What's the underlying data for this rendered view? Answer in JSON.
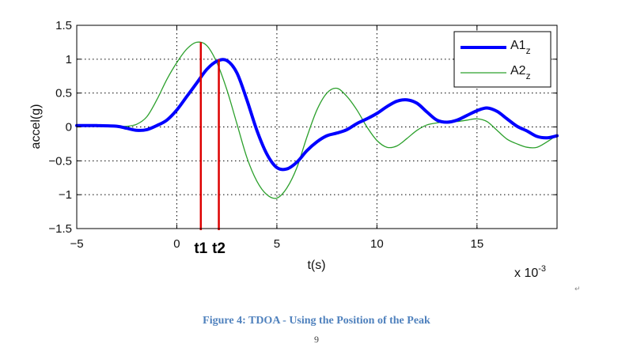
{
  "chart_data": {
    "type": "line",
    "xlabel": "t(s)",
    "ylabel": "accel(g)",
    "x_multiplier": "x 10",
    "x_multiplier_exp": "-3",
    "xlim": [
      -5,
      19
    ],
    "ylim": [
      -1.5,
      1.5
    ],
    "xticks": [
      -5,
      0,
      5,
      10,
      15
    ],
    "yticks": [
      -1.5,
      -1,
      -0.5,
      0,
      0.5,
      1,
      1.5
    ],
    "xtick_labels": [
      "−5",
      "0",
      "5",
      "10",
      "15"
    ],
    "ytick_labels": [
      "−1.5",
      "−1",
      "−0.5",
      "0",
      "0.5",
      "1",
      "1.5"
    ],
    "grid": true,
    "legend_position": "top-right",
    "series": [
      {
        "name": "A1",
        "subscript": "z",
        "color": "#0000ff",
        "x": [
          -5,
          -4,
          -3,
          -2.5,
          -2,
          -1.5,
          -1,
          -0.5,
          0,
          0.5,
          1,
          1.5,
          2,
          2.5,
          3,
          3.5,
          4,
          4.5,
          5,
          5.5,
          6,
          6.5,
          7,
          7.5,
          8,
          8.5,
          9,
          9.5,
          10,
          10.5,
          11,
          11.5,
          12,
          12.5,
          13,
          13.5,
          14,
          14.5,
          15,
          15.5,
          16,
          16.5,
          17,
          17.5,
          18,
          18.5,
          19
        ],
        "y": [
          0.02,
          0.02,
          0.01,
          -0.02,
          -0.05,
          -0.04,
          0.02,
          0.1,
          0.25,
          0.45,
          0.65,
          0.85,
          0.97,
          0.98,
          0.8,
          0.4,
          -0.05,
          -0.4,
          -0.6,
          -0.62,
          -0.52,
          -0.35,
          -0.22,
          -0.13,
          -0.09,
          -0.04,
          0.05,
          0.12,
          0.2,
          0.3,
          0.38,
          0.4,
          0.35,
          0.22,
          0.1,
          0.07,
          0.1,
          0.17,
          0.24,
          0.28,
          0.23,
          0.12,
          0.01,
          -0.06,
          -0.14,
          -0.16,
          -0.13
        ]
      },
      {
        "name": "A2",
        "subscript": "z",
        "color": "#2ca02c",
        "x": [
          -5,
          -4,
          -3,
          -2.5,
          -2,
          -1.5,
          -1,
          -0.5,
          0,
          0.5,
          1,
          1.5,
          2,
          2.5,
          3,
          3.5,
          4,
          4.5,
          5,
          5.5,
          6,
          6.5,
          7,
          7.5,
          8,
          8.5,
          9,
          9.5,
          10,
          10.5,
          11,
          11.5,
          12,
          12.5,
          13,
          13.5,
          14,
          14.5,
          15,
          15.5,
          16,
          16.5,
          17,
          17.5,
          18,
          18.5,
          19
        ],
        "y": [
          0.02,
          0.02,
          0.01,
          0.01,
          0.04,
          0.15,
          0.4,
          0.7,
          0.95,
          1.15,
          1.25,
          1.2,
          0.95,
          0.55,
          0.05,
          -0.45,
          -0.8,
          -1.0,
          -1.05,
          -0.9,
          -0.6,
          -0.15,
          0.25,
          0.5,
          0.57,
          0.45,
          0.25,
          0.0,
          -0.2,
          -0.3,
          -0.28,
          -0.17,
          -0.05,
          0.03,
          0.06,
          0.08,
          0.08,
          0.1,
          0.12,
          0.08,
          -0.05,
          -0.18,
          -0.25,
          -0.3,
          -0.3,
          -0.22,
          -0.12
        ]
      }
    ],
    "vertical_markers": [
      {
        "label": "t1",
        "x": 1.2,
        "y_top": 1.25,
        "color": "#dd0000"
      },
      {
        "label": "t2",
        "x": 2.1,
        "y_top": 1.0,
        "color": "#dd0000"
      }
    ]
  },
  "caption": "Figure 4: TDOA - Using the Position of the Peak",
  "page_number": "9"
}
